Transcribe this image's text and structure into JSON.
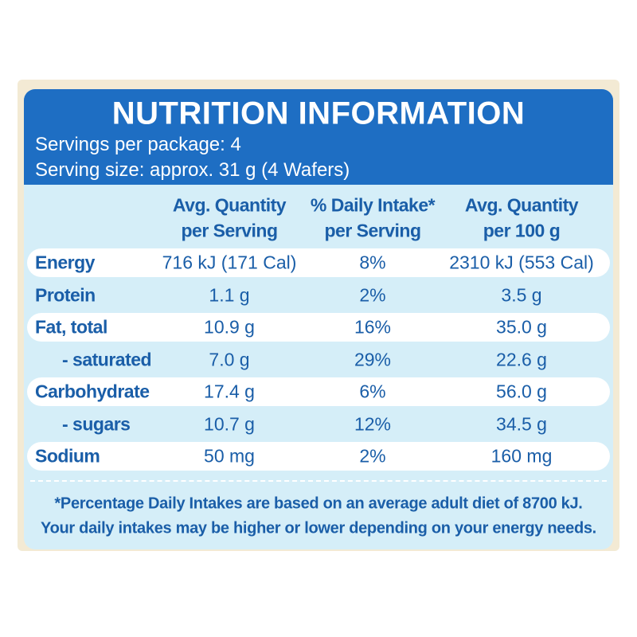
{
  "header": {
    "title": "NUTRITION INFORMATION",
    "servings": "Servings per package: 4",
    "serving_size": "Serving size: approx. 31 g (4 Wafers)"
  },
  "table": {
    "columns": [
      [
        "Avg. Quantity",
        "per Serving"
      ],
      [
        "% Daily Intake*",
        "per Serving"
      ],
      [
        "Avg. Quantity",
        "per 100 g"
      ]
    ],
    "rows": [
      [
        "Energy",
        "716 kJ (171 Cal)",
        "8%",
        "2310 kJ (553 Cal)"
      ],
      [
        "Protein",
        "1.1 g",
        "2%",
        "3.5 g"
      ],
      [
        "Fat, total",
        "10.9 g",
        "16%",
        "35.0 g"
      ],
      [
        "- saturated",
        "7.0 g",
        "29%",
        "22.6 g"
      ],
      [
        "Carbohydrate",
        "17.4 g",
        "6%",
        "56.0 g"
      ],
      [
        "- sugars",
        "10.7 g",
        "12%",
        "34.5 g"
      ],
      [
        "Sodium",
        "50 mg",
        "2%",
        "160 mg"
      ]
    ]
  },
  "footer": [
    "*Percentage Daily Intakes are based on an average adult diet of 8700 kJ.",
    "Your daily intakes may be higher or lower depending on your energy needs."
  ]
}
